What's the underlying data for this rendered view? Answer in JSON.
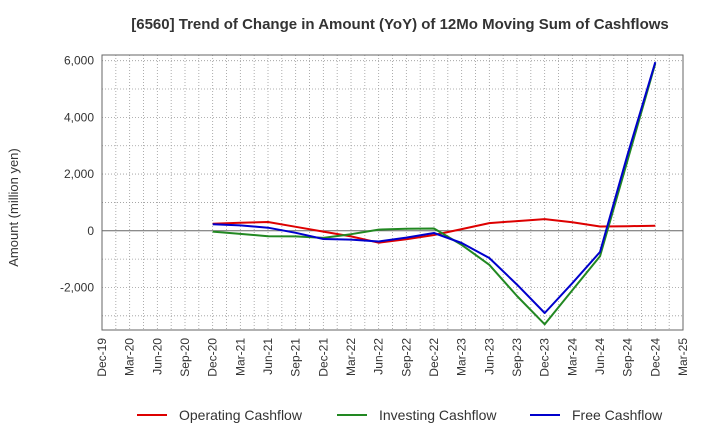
{
  "chart_data": {
    "type": "line",
    "title": "[6560]  Trend of Change in Amount (YoY) of 12Mo Moving Sum of Cashflows",
    "xlabel": "",
    "ylabel": "Amount (million yen)",
    "ylim": [
      -3500,
      6200
    ],
    "yticks": [
      -2000,
      0,
      2000,
      4000,
      6000
    ],
    "ytick_labels": [
      "-2,000",
      "0",
      "2,000",
      "4,000",
      "6,000"
    ],
    "categories": [
      "Dec-19",
      "Mar-20",
      "Jun-20",
      "Sep-20",
      "Dec-20",
      "Mar-21",
      "Jun-21",
      "Sep-21",
      "Dec-21",
      "Mar-22",
      "Jun-22",
      "Sep-22",
      "Dec-22",
      "Mar-23",
      "Jun-23",
      "Sep-23",
      "Dec-23",
      "Mar-24",
      "Jun-24",
      "Sep-24",
      "Dec-24",
      "Mar-25"
    ],
    "grid": true,
    "legend_position": "bottom",
    "series": [
      {
        "name": "Operating Cashflow",
        "color": "#dd0000",
        "values": [
          null,
          null,
          null,
          null,
          250,
          280,
          310,
          140,
          -30,
          -200,
          -420,
          -300,
          -150,
          60,
          270,
          340,
          410,
          300,
          150,
          160,
          180,
          null
        ]
      },
      {
        "name": "Investing Cashflow",
        "color": "#228822",
        "values": [
          null,
          null,
          null,
          null,
          -30,
          -110,
          -190,
          -200,
          -250,
          -120,
          40,
          70,
          80,
          -500,
          -1200,
          -2300,
          -3300,
          -2100,
          -900,
          2500,
          5900,
          null
        ]
      },
      {
        "name": "Free Cashflow",
        "color": "#0000cc",
        "values": [
          null,
          null,
          null,
          null,
          230,
          190,
          110,
          -70,
          -290,
          -310,
          -380,
          -240,
          -80,
          -430,
          -960,
          -1900,
          -2900,
          -1850,
          -750,
          2700,
          5950,
          null
        ]
      }
    ]
  }
}
